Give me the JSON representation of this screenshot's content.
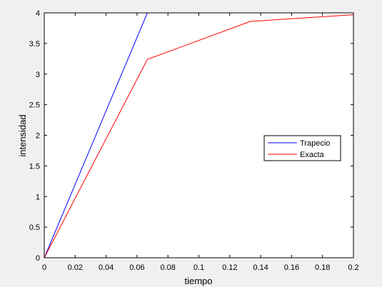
{
  "chart_data": {
    "type": "line",
    "x_label": "tiempo",
    "y_label": "intensidad",
    "x": [
      0,
      0.0667,
      0.1333,
      0.2
    ],
    "series": [
      {
        "name": "Trapecio",
        "color": "#0000ff",
        "values": [
          0,
          4,
          4,
          4
        ]
      },
      {
        "name": "Exacta",
        "color": "#ff0000",
        "values": [
          0,
          3.24,
          3.86,
          3.97
        ]
      }
    ],
    "xlim": [
      0,
      0.2
    ],
    "xticks": [
      0,
      0.02,
      0.04,
      0.06,
      0.08,
      0.1,
      0.12,
      0.14,
      0.16,
      0.18,
      0.2
    ],
    "ylim": [
      0,
      4
    ],
    "yticks": [
      0,
      0.5,
      1,
      1.5,
      2,
      2.5,
      3,
      3.5,
      4
    ],
    "legend_position": "east",
    "grid": false
  }
}
